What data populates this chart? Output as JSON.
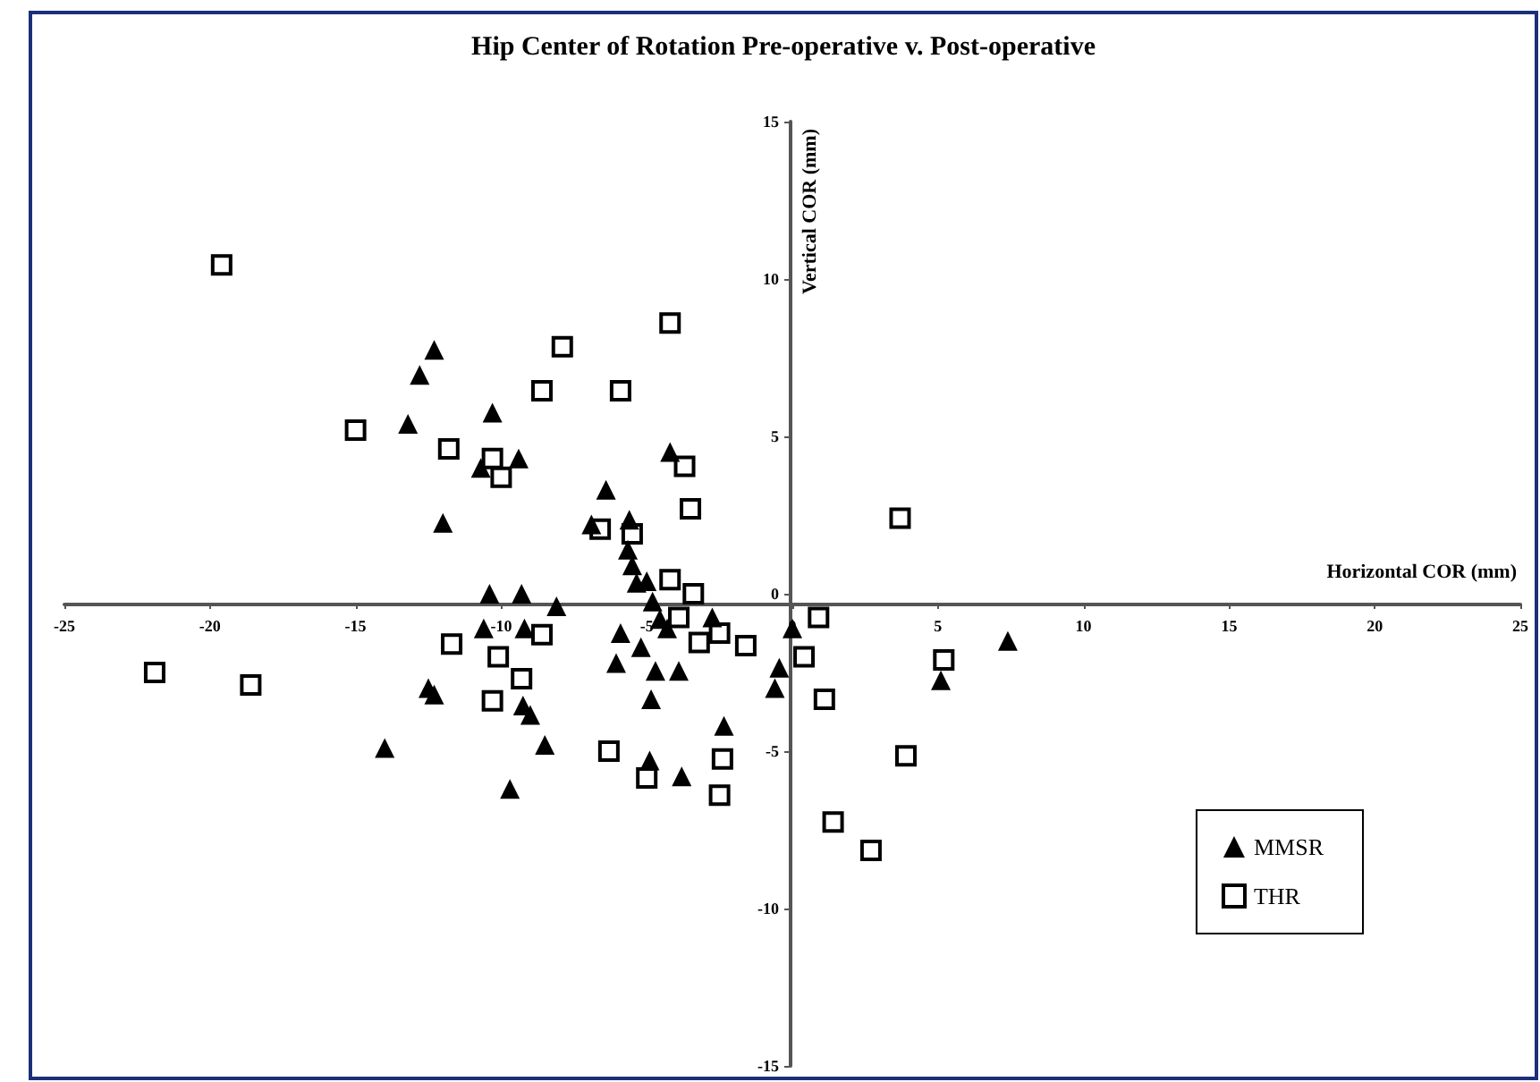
{
  "chart_data": {
    "type": "scatter",
    "title": "Hip Center of Rotation Pre-operative v. Post-operative",
    "xlabel": "Horizontal COR (mm)",
    "ylabel": "Vertical COR (mm)",
    "xlim": [
      -25,
      25
    ],
    "xticks": [
      -25,
      -20,
      -15,
      -10,
      -5,
      0,
      5,
      10,
      15,
      20,
      25
    ],
    "ylim": [
      -15,
      15
    ],
    "yticks": [
      -15,
      -10,
      -5,
      0,
      5,
      10,
      15
    ],
    "grid": false,
    "legend": "bottom right",
    "series": [
      {
        "name": "MMSR",
        "color": "#000000",
        "marker": "triangle",
        "x": [
          -12.3,
          -12.8,
          -13.2,
          -10.3,
          -9.4,
          -10.7,
          -12.0,
          -10.4,
          -9.3,
          -8.1,
          -10.6,
          -9.2,
          -12.5,
          -12.3,
          -9.25,
          -9.0,
          -14.0,
          -8.5,
          -9.7,
          -4.2,
          -6.4,
          -6.9,
          -5.6,
          -5.65,
          -5.5,
          -5.35,
          -5.0,
          -4.8,
          -4.55,
          -4.3,
          -2.75,
          -5.9,
          -5.2,
          -6.05,
          -4.7,
          -3.9,
          -4.85,
          -2.35,
          -4.9,
          -3.8,
          -0.45,
          -0.6,
          5.1,
          0.0,
          7.4
        ],
        "values": [
          7.75,
          6.95,
          5.4,
          5.75,
          4.3,
          4.0,
          2.25,
          0.0,
          0.0,
          -0.4,
          -1.1,
          -1.1,
          -3.0,
          -3.2,
          -3.55,
          -3.85,
          -4.9,
          -4.8,
          -6.2,
          4.5,
          3.3,
          2.2,
          2.35,
          1.4,
          0.9,
          0.35,
          0.4,
          -0.25,
          -0.8,
          -1.1,
          -0.75,
          -1.25,
          -1.7,
          -2.2,
          -2.45,
          -2.45,
          -3.35,
          -4.2,
          -5.3,
          -5.8,
          -2.35,
          -3.0,
          -2.75,
          -1.1,
          -1.5
        ]
      },
      {
        "name": "THR",
        "color": "#000000",
        "marker": "square",
        "x": [
          -19.6,
          -7.9,
          -8.6,
          -15.0,
          -11.8,
          -10.3,
          -10.0,
          -11.7,
          -21.9,
          -18.6,
          -10.1,
          -8.6,
          -9.3,
          -10.3,
          -4.2,
          -5.9,
          -3.7,
          -3.5,
          -6.6,
          -5.5,
          -4.2,
          -3.4,
          -3.9,
          -2.5,
          -3.2,
          -1.6,
          -6.3,
          -5.0,
          -2.4,
          -2.5,
          0.9,
          0.4,
          1.1,
          3.7,
          5.2,
          3.9,
          1.4,
          2.7
        ],
        "values": [
          10.45,
          7.85,
          6.45,
          5.2,
          4.6,
          4.3,
          3.7,
          -1.6,
          -2.5,
          -2.9,
          -2.0,
          -1.3,
          -2.7,
          -3.4,
          8.6,
          6.45,
          4.05,
          2.7,
          2.05,
          1.9,
          0.45,
          0.0,
          -0.75,
          -1.25,
          -1.55,
          -1.65,
          -5.0,
          -5.85,
          -5.25,
          -6.4,
          -0.75,
          -2.0,
          -3.35,
          2.4,
          -2.1,
          -5.15,
          -7.25,
          -8.15
        ]
      }
    ]
  }
}
